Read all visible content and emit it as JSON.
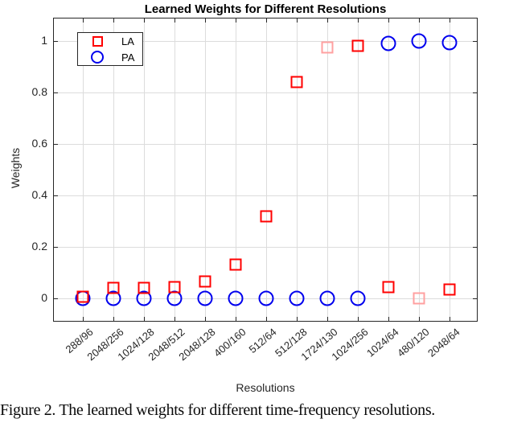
{
  "figure": {
    "caption": "Figure 2. The learned weights for different time-frequency resolutions."
  },
  "chart_data": {
    "type": "scatter",
    "title": "Learned Weights for Different Resolutions",
    "xlabel": "Resolutions",
    "ylabel": "Weights",
    "categories": [
      "288/96",
      "2048/256",
      "1024/128",
      "2048/512",
      "2048/128",
      "400/160",
      "512/64",
      "512/128",
      "1724/130",
      "1024/256",
      "1024/64",
      "480/120",
      "2048/64"
    ],
    "series": [
      {
        "name": "LA",
        "marker": "square",
        "color": "#ff0000",
        "faded_color": "#ffa0a0",
        "faded_indices": [
          8,
          11
        ],
        "values": [
          0.005,
          0.04,
          0.04,
          0.045,
          0.065,
          0.13,
          0.32,
          0.84,
          0.975,
          0.98,
          0.045,
          0.0,
          0.035
        ]
      },
      {
        "name": "PA",
        "marker": "circle",
        "color": "#0000ee",
        "values": [
          0.0,
          0.0,
          0.0,
          0.0,
          0.0,
          0.0,
          0.0,
          0.0,
          0.0,
          0.0,
          0.99,
          1.0,
          0.995
        ]
      }
    ],
    "yticks": [
      0,
      0.2,
      0.4,
      0.6,
      0.8,
      1
    ],
    "ytick_labels": [
      "0",
      "0.2",
      "0.4",
      "0.6",
      "0.8",
      "1"
    ],
    "ylim": [
      -0.09,
      1.09
    ],
    "grid": true,
    "legend_position": "top-left-inside"
  },
  "style": {
    "grid_color": "#dcdcdc",
    "axis_color": "#262626",
    "text_color": "#262626",
    "background": "#ffffff"
  }
}
